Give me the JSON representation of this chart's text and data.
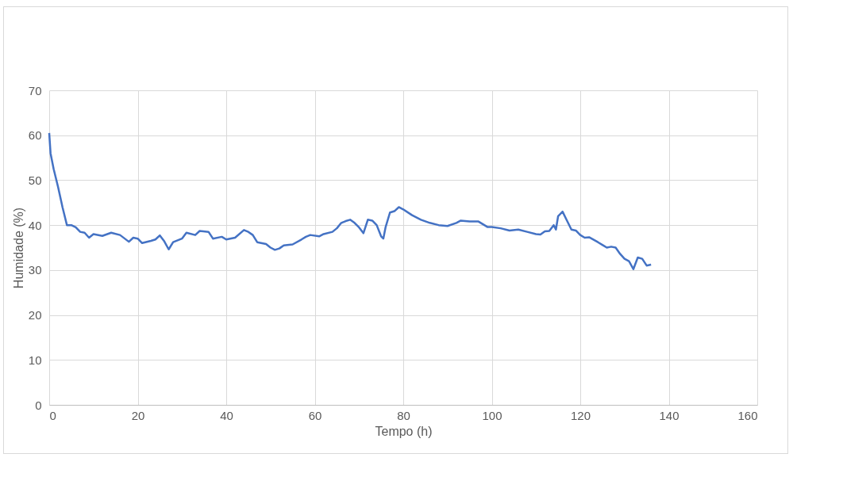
{
  "chart_data": {
    "type": "line",
    "xlabel": "Tempo (h)",
    "ylabel": "Humidade (%)",
    "x": [
      0,
      0.3,
      1,
      2,
      3,
      4,
      5,
      6,
      7,
      8,
      9,
      10,
      12,
      14,
      16,
      18,
      19,
      20,
      21,
      23,
      24,
      25,
      26,
      27,
      28,
      30,
      31,
      33,
      34,
      36,
      37,
      39,
      40,
      42,
      44,
      45,
      46,
      47,
      49,
      50,
      51,
      52,
      53,
      55,
      57,
      58,
      59,
      61,
      62,
      64,
      65,
      66,
      67,
      68,
      69,
      70,
      71,
      72,
      73,
      74,
      75,
      75.5,
      76,
      77,
      78,
      79,
      80,
      82,
      84,
      86,
      88,
      90,
      92,
      93,
      95,
      97,
      99,
      100,
      102,
      104,
      106,
      108,
      110,
      111,
      112,
      113,
      114,
      114.5,
      115,
      116,
      117,
      118,
      119,
      120,
      121,
      122,
      124,
      125,
      126,
      127,
      128,
      129,
      130,
      131,
      132,
      133,
      134,
      135,
      136
    ],
    "series": [
      {
        "color": "#4472c4",
        "values": [
          60.5,
          56,
          52.5,
          48.5,
          44,
          40,
          40,
          39.5,
          38.5,
          38.3,
          37.2,
          38,
          37.6,
          38.3,
          37.8,
          36.3,
          37.2,
          37,
          36,
          36.5,
          36.8,
          37.7,
          36.4,
          34.6,
          36.2,
          37,
          38.3,
          37.8,
          38.7,
          38.5,
          37,
          37.4,
          36.8,
          37.2,
          38.9,
          38.5,
          37.8,
          36.2,
          35.8,
          35,
          34.5,
          34.8,
          35.5,
          35.7,
          36.8,
          37.4,
          37.8,
          37.5,
          38,
          38.5,
          39.3,
          40.5,
          40.9,
          41.2,
          40.5,
          39.5,
          38.2,
          41.2,
          41,
          40,
          37.5,
          37,
          39.5,
          42.8,
          43.1,
          44,
          43.5,
          42.2,
          41.2,
          40.5,
          40,
          39.8,
          40.5,
          41,
          40.8,
          40.8,
          39.6,
          39.6,
          39.3,
          38.8,
          39,
          38.5,
          38,
          37.9,
          38.6,
          38.7,
          40,
          39,
          42,
          43,
          41,
          39,
          38.8,
          37.8,
          37.2,
          37.3,
          36.2,
          35.6,
          35,
          35.2,
          35,
          33.6,
          32.5,
          32,
          30.2,
          32.8,
          32.5,
          31,
          31.2
        ]
      }
    ],
    "xlim": [
      0,
      160
    ],
    "xticks": [
      0,
      20,
      40,
      60,
      80,
      100,
      120,
      140,
      160
    ],
    "ylim": [
      0,
      70
    ],
    "yticks": [
      0,
      10,
      20,
      30,
      40,
      50,
      60,
      70
    ],
    "grid": true,
    "marker": "none",
    "line_style": "solid"
  }
}
